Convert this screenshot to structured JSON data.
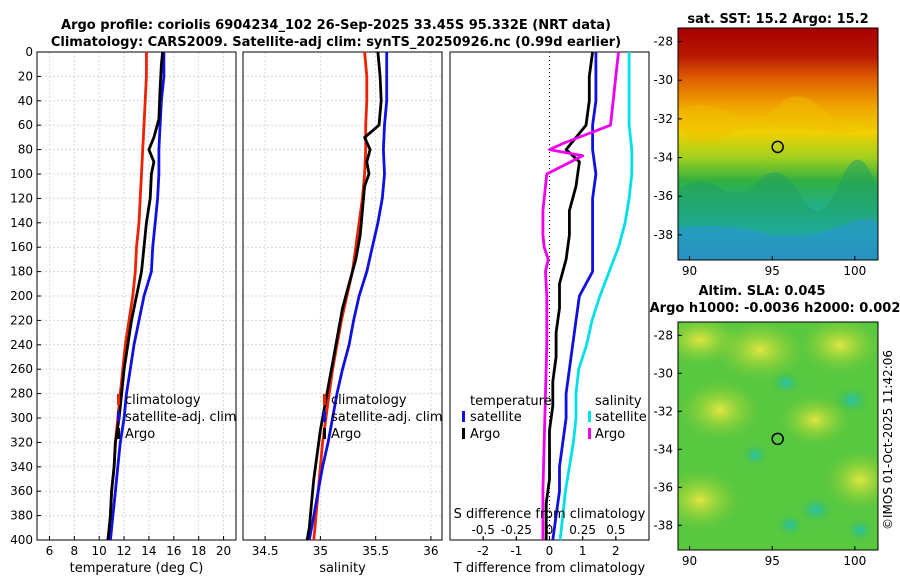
{
  "titles": {
    "line1": "Argo profile: coriolis 6904234_102 26-Sep-2025 33.45S 95.332E (NRT data)",
    "line2": "Climatology: CARS2009. Satellite-adj clim: synTS_20250926.nc (0.99d earlier)",
    "sst": "sat. SST: 15.2 Argo: 15.2",
    "sla1": "Altim. SLA: 0.045",
    "sla2": "Argo h1000: -0.0036 h2000: 0.002",
    "stamp": "©IMOS 01-Oct-2025 11:42:06"
  },
  "chart_data": [
    {
      "type": "line",
      "name": "temperature-panel",
      "xlabel": "temperature (deg C)",
      "ylabel": "",
      "xlim": [
        5,
        21
      ],
      "ylim": [
        400,
        0
      ],
      "xticks": [
        6,
        8,
        10,
        12,
        14,
        16,
        18,
        20
      ],
      "yticks": [
        0,
        20,
        40,
        60,
        80,
        100,
        120,
        140,
        160,
        180,
        200,
        220,
        240,
        260,
        280,
        300,
        320,
        340,
        360,
        380,
        400
      ],
      "grid": true,
      "legend": [
        "climatology",
        "satellite-adj. clim",
        "Argo"
      ],
      "legend_position": "lower-right",
      "series": [
        {
          "name": "climatology",
          "color": "#ee2200",
          "points": [
            [
              13.8,
              0
            ],
            [
              13.8,
              20
            ],
            [
              13.7,
              40
            ],
            [
              13.6,
              60
            ],
            [
              13.5,
              80
            ],
            [
              13.4,
              100
            ],
            [
              13.3,
              120
            ],
            [
              13.2,
              140
            ],
            [
              13.0,
              160
            ],
            [
              12.9,
              180
            ],
            [
              12.7,
              200
            ],
            [
              12.4,
              220
            ],
            [
              12.1,
              240
            ],
            [
              11.9,
              260
            ],
            [
              11.7,
              280
            ],
            [
              11.5,
              300
            ],
            [
              11.3,
              320
            ],
            [
              11.2,
              340
            ],
            [
              11.0,
              360
            ],
            [
              10.9,
              380
            ],
            [
              10.8,
              400
            ]
          ]
        },
        {
          "name": "satellite-adj. clim",
          "color": "#1010e0",
          "points": [
            [
              15.2,
              0
            ],
            [
              15.2,
              20
            ],
            [
              15.0,
              40
            ],
            [
              14.9,
              60
            ],
            [
              14.8,
              80
            ],
            [
              14.8,
              100
            ],
            [
              14.7,
              120
            ],
            [
              14.5,
              140
            ],
            [
              14.3,
              160
            ],
            [
              14.2,
              180
            ],
            [
              13.6,
              200
            ],
            [
              13.2,
              220
            ],
            [
              12.8,
              240
            ],
            [
              12.5,
              260
            ],
            [
              12.2,
              280
            ],
            [
              12.0,
              300
            ],
            [
              11.7,
              320
            ],
            [
              11.5,
              340
            ],
            [
              11.3,
              360
            ],
            [
              11.1,
              380
            ],
            [
              10.9,
              400
            ]
          ]
        },
        {
          "name": "Argo",
          "color": "#000000",
          "points": [
            [
              15.1,
              0
            ],
            [
              15.0,
              10
            ],
            [
              14.9,
              30
            ],
            [
              14.8,
              55
            ],
            [
              14.4,
              70
            ],
            [
              14.0,
              80
            ],
            [
              14.4,
              90
            ],
            [
              14.2,
              100
            ],
            [
              14.1,
              120
            ],
            [
              13.8,
              140
            ],
            [
              13.6,
              160
            ],
            [
              13.4,
              180
            ],
            [
              13.0,
              200
            ],
            [
              12.6,
              220
            ],
            [
              12.3,
              240
            ],
            [
              12.0,
              260
            ],
            [
              11.8,
              280
            ],
            [
              11.6,
              300
            ],
            [
              11.3,
              320
            ],
            [
              11.2,
              340
            ],
            [
              11.0,
              360
            ],
            [
              10.9,
              380
            ],
            [
              10.7,
              400
            ]
          ]
        }
      ]
    },
    {
      "type": "line",
      "name": "salinity-panel",
      "xlabel": "salinity",
      "xlim": [
        34.3,
        36.1
      ],
      "ylim": [
        400,
        0
      ],
      "xticks": [
        34.5,
        35,
        35.5,
        36
      ],
      "grid": true,
      "legend": [
        "climatology",
        "satellite-adj. clim",
        "Argo"
      ],
      "legend_position": "lower-right",
      "series": [
        {
          "name": "climatology",
          "color": "#ee2200",
          "points": [
            [
              35.4,
              0
            ],
            [
              35.42,
              20
            ],
            [
              35.42,
              40
            ],
            [
              35.41,
              60
            ],
            [
              35.41,
              80
            ],
            [
              35.4,
              100
            ],
            [
              35.38,
              120
            ],
            [
              35.35,
              140
            ],
            [
              35.32,
              160
            ],
            [
              35.29,
              180
            ],
            [
              35.24,
              200
            ],
            [
              35.19,
              220
            ],
            [
              35.15,
              240
            ],
            [
              35.11,
              260
            ],
            [
              35.08,
              280
            ],
            [
              35.05,
              300
            ],
            [
              35.02,
              320
            ],
            [
              35.0,
              340
            ],
            [
              34.98,
              360
            ],
            [
              34.96,
              380
            ],
            [
              34.94,
              400
            ]
          ]
        },
        {
          "name": "satellite-adj. clim",
          "color": "#1010e0",
          "points": [
            [
              35.6,
              0
            ],
            [
              35.6,
              20
            ],
            [
              35.6,
              40
            ],
            [
              35.58,
              60
            ],
            [
              35.57,
              80
            ],
            [
              35.58,
              100
            ],
            [
              35.56,
              120
            ],
            [
              35.52,
              140
            ],
            [
              35.47,
              160
            ],
            [
              35.42,
              180
            ],
            [
              35.35,
              200
            ],
            [
              35.3,
              220
            ],
            [
              35.26,
              240
            ],
            [
              35.2,
              260
            ],
            [
              35.15,
              280
            ],
            [
              35.11,
              300
            ],
            [
              35.07,
              320
            ],
            [
              35.02,
              340
            ],
            [
              34.98,
              360
            ],
            [
              34.94,
              380
            ],
            [
              34.9,
              400
            ]
          ]
        },
        {
          "name": "Argo",
          "color": "#000000",
          "points": [
            [
              35.52,
              0
            ],
            [
              35.54,
              20
            ],
            [
              35.55,
              40
            ],
            [
              35.53,
              60
            ],
            [
              35.4,
              70
            ],
            [
              35.45,
              80
            ],
            [
              35.42,
              90
            ],
            [
              35.44,
              100
            ],
            [
              35.4,
              110
            ],
            [
              35.38,
              130
            ],
            [
              35.36,
              150
            ],
            [
              35.32,
              170
            ],
            [
              35.26,
              190
            ],
            [
              35.2,
              210
            ],
            [
              35.16,
              230
            ],
            [
              35.12,
              250
            ],
            [
              35.08,
              270
            ],
            [
              35.04,
              290
            ],
            [
              35.0,
              310
            ],
            [
              34.97,
              330
            ],
            [
              34.94,
              350
            ],
            [
              34.92,
              370
            ],
            [
              34.9,
              390
            ],
            [
              34.88,
              400
            ]
          ]
        }
      ]
    },
    {
      "type": "line",
      "name": "difference-panel",
      "xlabel": "T difference from climatology",
      "secondary_xlabel": "S difference from climatology",
      "xlim": [
        -3,
        3
      ],
      "ylim": [
        400,
        0
      ],
      "xticks": [
        -2,
        -1,
        0,
        1,
        2
      ],
      "secondary_xticks": [
        -0.5,
        -0.25,
        0,
        0.25,
        0.5
      ],
      "secondary_tick_labels": [
        "-0.5",
        "-0.25",
        "0",
        "0.25",
        "0.5"
      ],
      "grid": false,
      "legend_left_title": "temperature",
      "legend_right_title": "salinity",
      "legend_left": [
        "satellite",
        "Argo"
      ],
      "legend_right": [
        "satellite",
        "Argo"
      ],
      "series": [
        {
          "name": "T satellite",
          "color": "#1010e0",
          "points": [
            [
              1.4,
              0
            ],
            [
              1.4,
              20
            ],
            [
              1.4,
              40
            ],
            [
              1.3,
              60
            ],
            [
              1.3,
              80
            ],
            [
              1.4,
              100
            ],
            [
              1.3,
              120
            ],
            [
              1.3,
              140
            ],
            [
              1.3,
              160
            ],
            [
              1.3,
              180
            ],
            [
              0.9,
              200
            ],
            [
              0.8,
              220
            ],
            [
              0.7,
              240
            ],
            [
              0.6,
              260
            ],
            [
              0.5,
              280
            ],
            [
              0.5,
              300
            ],
            [
              0.4,
              320
            ],
            [
              0.3,
              340
            ],
            [
              0.3,
              360
            ],
            [
              0.2,
              380
            ],
            [
              0.1,
              400
            ]
          ]
        },
        {
          "name": "T Argo",
          "color": "#000000",
          "points": [
            [
              1.3,
              0
            ],
            [
              1.2,
              20
            ],
            [
              1.2,
              40
            ],
            [
              1.1,
              60
            ],
            [
              0.5,
              80
            ],
            [
              0.9,
              90
            ],
            [
              0.8,
              110
            ],
            [
              0.6,
              130
            ],
            [
              0.6,
              150
            ],
            [
              0.5,
              170
            ],
            [
              0.3,
              190
            ],
            [
              0.3,
              210
            ],
            [
              0.2,
              230
            ],
            [
              0.2,
              250
            ],
            [
              0.1,
              270
            ],
            [
              0.1,
              290
            ],
            [
              0.0,
              310
            ],
            [
              0.0,
              330
            ],
            [
              0.0,
              350
            ],
            [
              -0.1,
              370
            ],
            [
              -0.1,
              400
            ]
          ]
        },
        {
          "name": "S satellite",
          "color": "#00e0e8",
          "points": [
            [
              0.6,
              0
            ],
            [
              0.6,
              20
            ],
            [
              0.6,
              40
            ],
            [
              0.6,
              60
            ],
            [
              0.62,
              80
            ],
            [
              0.62,
              100
            ],
            [
              0.6,
              120
            ],
            [
              0.57,
              140
            ],
            [
              0.52,
              160
            ],
            [
              0.45,
              180
            ],
            [
              0.38,
              200
            ],
            [
              0.32,
              220
            ],
            [
              0.28,
              240
            ],
            [
              0.22,
              260
            ],
            [
              0.2,
              280
            ],
            [
              0.2,
              300
            ],
            [
              0.18,
              320
            ],
            [
              0.15,
              340
            ],
            [
              0.12,
              360
            ],
            [
              0.1,
              380
            ],
            [
              0.08,
              400
            ]
          ]
        },
        {
          "name": "S Argo",
          "color": "#ee00ee",
          "points": [
            [
              0.52,
              0
            ],
            [
              0.5,
              20
            ],
            [
              0.48,
              40
            ],
            [
              0.46,
              60
            ],
            [
              0.1,
              75
            ],
            [
              0.0,
              80
            ],
            [
              0.25,
              85
            ],
            [
              -0.02,
              100
            ],
            [
              -0.05,
              130
            ],
            [
              -0.05,
              150
            ],
            [
              -0.04,
              160
            ],
            [
              -0.01,
              170
            ],
            [
              -0.03,
              180
            ],
            [
              -0.02,
              200
            ],
            [
              -0.02,
              240
            ],
            [
              -0.03,
              280
            ],
            [
              -0.04,
              320
            ],
            [
              -0.05,
              360
            ],
            [
              -0.05,
              400
            ]
          ]
        }
      ]
    },
    {
      "type": "heatmap",
      "name": "sst-map",
      "title": "sat. SST: 15.2 Argo: 15.2",
      "xlim": [
        89.3,
        101.4
      ],
      "ylim": [
        -39.3,
        -27.3
      ],
      "xticks": [
        90,
        95,
        100
      ],
      "yticks": [
        -28,
        -30,
        -32,
        -34,
        -36,
        -38
      ],
      "profile_location": [
        95.33,
        -33.45
      ]
    },
    {
      "type": "heatmap",
      "name": "sla-map",
      "title": "Altim. SLA: 0.045",
      "subtitle": "Argo h1000: -0.0036 h2000: 0.002",
      "xlim": [
        89.3,
        101.4
      ],
      "ylim": [
        -39.3,
        -27.3
      ],
      "xticks": [
        90,
        95,
        100
      ],
      "yticks": [
        -28,
        -30,
        -32,
        -34,
        -36,
        -38
      ],
      "profile_location": [
        95.33,
        -33.45
      ]
    }
  ]
}
